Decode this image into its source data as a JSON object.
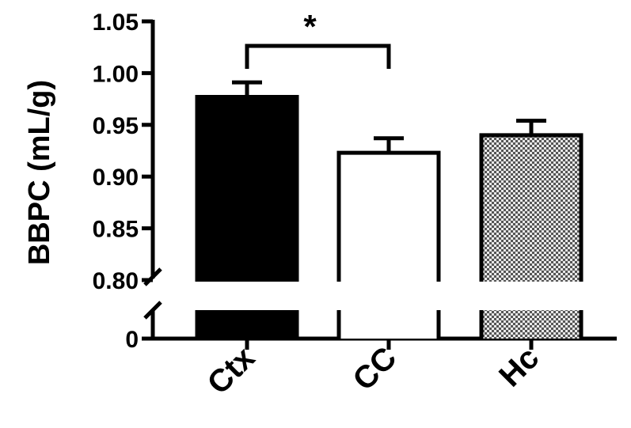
{
  "chart_data": {
    "type": "bar",
    "title": "",
    "xlabel": "",
    "ylabel": "BBPC (mL/g)",
    "categories": [
      "Ctx",
      "CC",
      "Hc"
    ],
    "values": [
      0.977,
      0.923,
      0.94
    ],
    "errors": [
      0.014,
      0.014,
      0.014
    ],
    "bar_fills": [
      "solid-black",
      "white",
      "checkered-gray"
    ],
    "ylim": [
      0.8,
      1.05
    ],
    "broken_axis": {
      "lower_value": 0,
      "lower_label": "0",
      "break_at": 0.8
    },
    "ytick_values": [
      0.8,
      0.85,
      0.9,
      0.95,
      1.0,
      1.05
    ],
    "ytick_labels": [
      "0.80",
      "0.85",
      "0.90",
      "0.95",
      "1.00",
      "1.05"
    ],
    "grid": false,
    "significance": [
      {
        "from": "Ctx",
        "to": "CC",
        "label": "*"
      }
    ]
  },
  "colors": {
    "axis": "#000000",
    "bar_solid": "#000000",
    "bar_white": "#ffffff",
    "checker_dark": "#555555",
    "checker_light": "#e8e8e8"
  }
}
